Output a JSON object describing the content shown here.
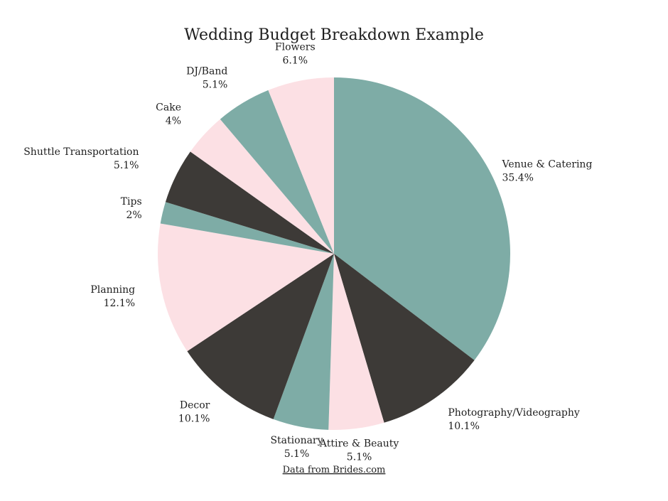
{
  "chart_data": {
    "type": "pie",
    "title": "Wedding Budget Breakdown Example",
    "source": "Data from Brides.com",
    "start_angle_deg": 0,
    "direction": "clockwise",
    "colors": {
      "teal": "#7eaca6",
      "dark": "#3d3a37",
      "pink": "#fce0e4"
    },
    "slices": [
      {
        "label": "Venue & Catering",
        "value": 35.4,
        "value_label": "35.4%",
        "color": "#7eaca6"
      },
      {
        "label": "Photography/Videography",
        "value": 10.1,
        "value_label": "10.1%",
        "color": "#3d3a37"
      },
      {
        "label": "Attire & Beauty",
        "value": 5.1,
        "value_label": "5.1%",
        "color": "#fce0e4"
      },
      {
        "label": "Stationary",
        "value": 5.1,
        "value_label": "5.1%",
        "color": "#7eaca6"
      },
      {
        "label": "Decor",
        "value": 10.1,
        "value_label": "10.1%",
        "color": "#3d3a37"
      },
      {
        "label": "Planning",
        "value": 12.1,
        "value_label": "12.1%",
        "color": "#fce0e4"
      },
      {
        "label": "Tips",
        "value": 2,
        "value_label": "2%",
        "color": "#7eaca6"
      },
      {
        "label": "Shuttle Transportation",
        "value": 5.1,
        "value_label": "5.1%",
        "color": "#3d3a37"
      },
      {
        "label": "Cake",
        "value": 4,
        "value_label": "4%",
        "color": "#fce0e4"
      },
      {
        "label": "DJ/Band",
        "value": 5.1,
        "value_label": "5.1%",
        "color": "#7eaca6"
      },
      {
        "label": "Flowers",
        "value": 6.1,
        "value_label": "6.1%",
        "color": "#fce0e4"
      }
    ]
  }
}
